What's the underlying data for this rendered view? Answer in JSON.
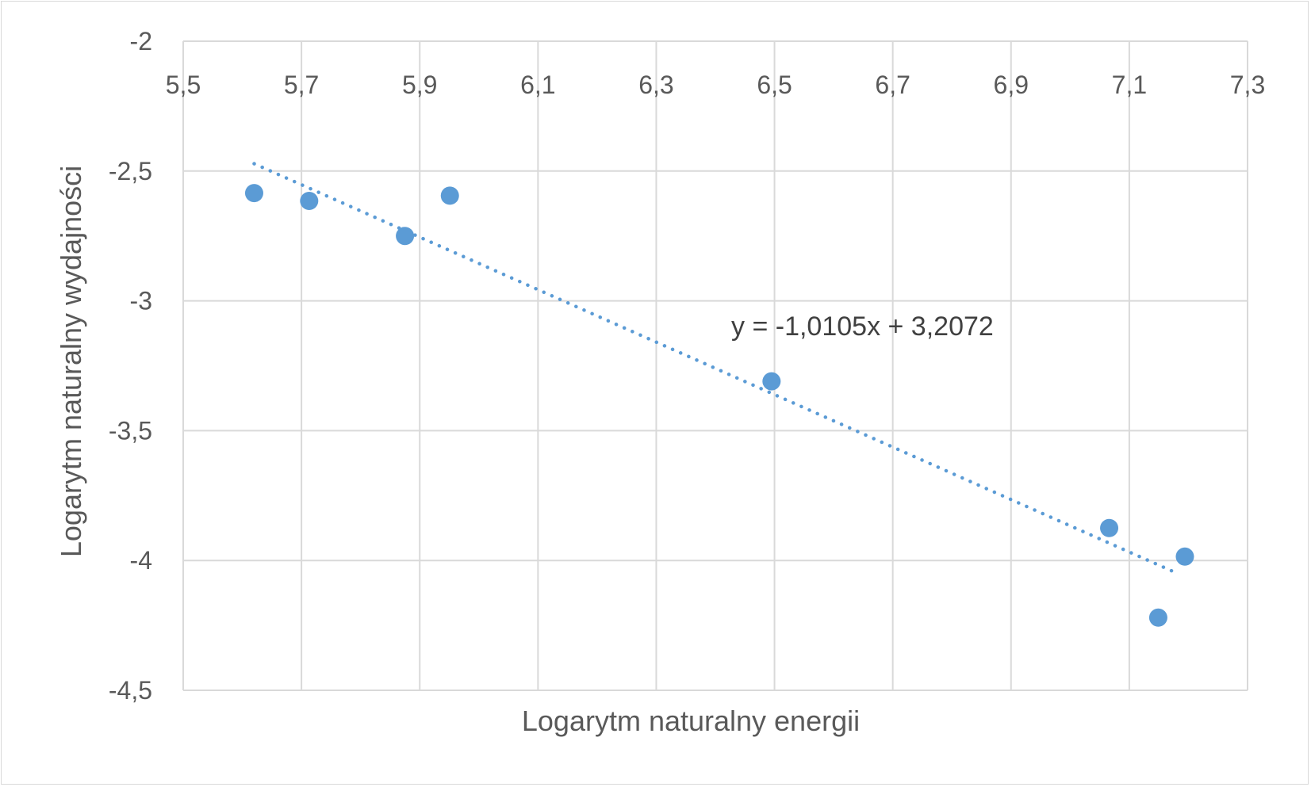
{
  "chart_data": {
    "type": "scatter",
    "title": "",
    "xlabel": "Logarytm naturalny energii",
    "ylabel": "Logarytm naturalny wydajności",
    "xlim": [
      5.5,
      7.3
    ],
    "ylim": [
      -4.5,
      -2
    ],
    "x_ticks": [
      "5,5",
      "5,7",
      "5,9",
      "6,1",
      "6,3",
      "6,5",
      "6,7",
      "6,9",
      "7,1",
      "7,3"
    ],
    "x_tick_values": [
      5.5,
      5.7,
      5.9,
      6.1,
      6.3,
      6.5,
      6.7,
      6.9,
      7.1,
      7.3
    ],
    "y_ticks": [
      "-2",
      "-2,5",
      "-3",
      "-3,5",
      "-4",
      "-4,5"
    ],
    "y_tick_values": [
      -2,
      -2.5,
      -3,
      -3.5,
      -4,
      -4.5
    ],
    "grid": true,
    "legend": "none",
    "series": [
      {
        "color": "#5b9bd5",
        "points": [
          {
            "x": 5.62,
            "y": -2.585
          },
          {
            "x": 5.713,
            "y": -2.615
          },
          {
            "x": 5.875,
            "y": -2.75
          },
          {
            "x": 5.951,
            "y": -2.595
          },
          {
            "x": 6.495,
            "y": -3.31
          },
          {
            "x": 7.066,
            "y": -3.875
          },
          {
            "x": 7.149,
            "y": -4.22
          },
          {
            "x": 7.194,
            "y": -3.985
          }
        ]
      }
    ],
    "trendline": {
      "type": "linear",
      "style": "dotted",
      "color": "#5b9bd5",
      "slope": -1.0105,
      "intercept": 3.2072,
      "x_range": [
        5.62,
        7.18
      ],
      "equation_label": "y = -1,0105x + 3,2072"
    }
  }
}
